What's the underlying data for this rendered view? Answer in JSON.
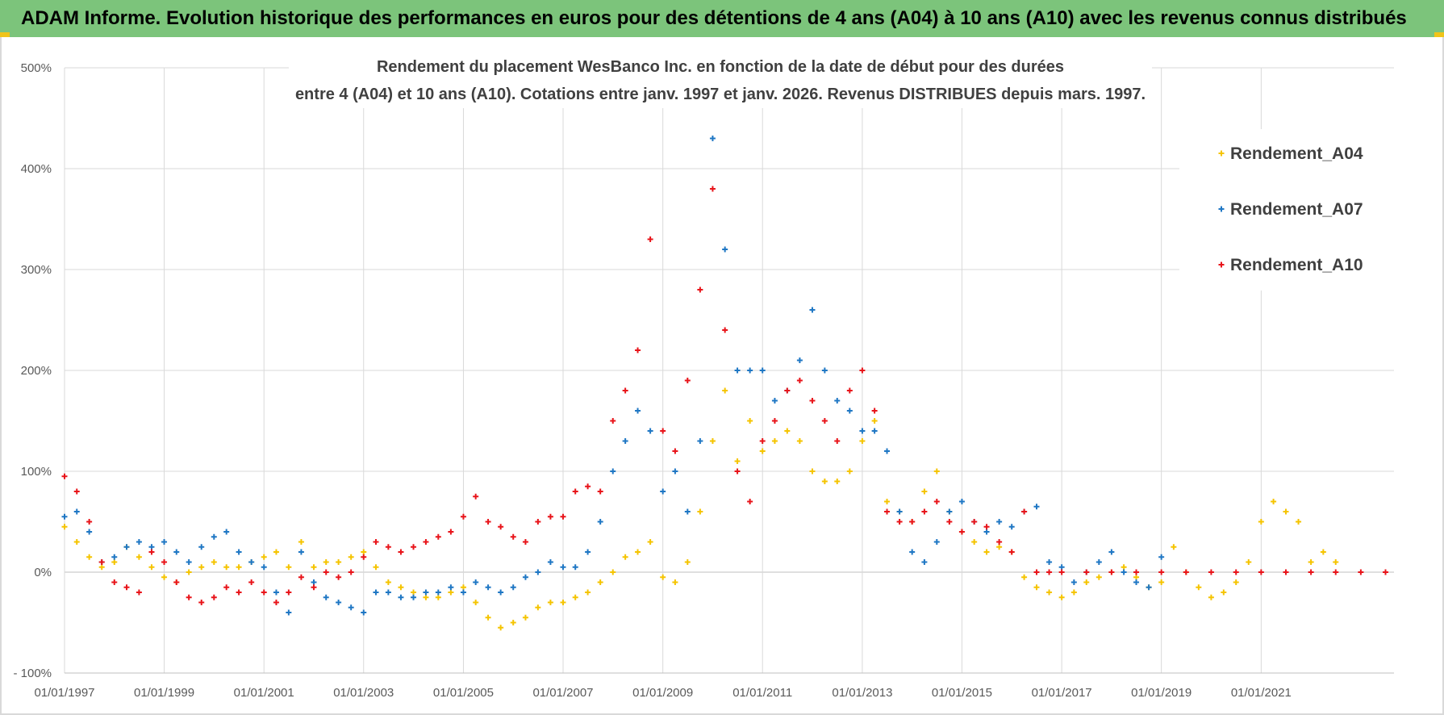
{
  "banner": {
    "title": "ADAM Informe. Evolution historique des performances en euros pour des détentions de 4 ans (A04) à 10 ans (A10) avec les revenus connus distribués"
  },
  "chart_data": {
    "type": "scatter",
    "title_line1": "Rendement du placement WesBanco Inc. en fonction de la date de début pour des durées",
    "title_line2": "entre 4 (A04) et 10 ans (A10).  Cotations entre janv. 1997 et janv. 2026. Revenus DISTRIBUES depuis mars. 1997.",
    "xlabel": "",
    "ylabel": "",
    "xlim": [
      "1997-01-01",
      "2023-09-01"
    ],
    "ylim": [
      -100,
      500
    ],
    "y_ticks": [
      -100,
      0,
      100,
      200,
      300,
      400,
      500
    ],
    "y_tick_labels": [
      "- 100%",
      "0%",
      "100%",
      "200%",
      "300%",
      "400%",
      "500%"
    ],
    "x_ticks": [
      "1997-01-01",
      "1999-01-01",
      "2001-01-01",
      "2003-01-01",
      "2005-01-01",
      "2007-01-01",
      "2009-01-01",
      "2011-01-01",
      "2013-01-01",
      "2015-01-01",
      "2017-01-01",
      "2019-01-01",
      "2021-01-01"
    ],
    "x_tick_labels": [
      "01/01/1997",
      "01/01/1999",
      "01/01/2001",
      "01/01/2003",
      "01/01/2005",
      "01/01/2007",
      "01/01/2009",
      "01/01/2011",
      "01/01/2013",
      "01/01/2015",
      "01/01/2017",
      "01/01/2019",
      "01/01/2021"
    ],
    "grid": true,
    "legend_position": "top-right",
    "marker": "+",
    "series": [
      {
        "name": "Rendement_A04",
        "color": "#f5c400",
        "x": [
          "1997-01-01",
          "1997-04-01",
          "1997-07-01",
          "1997-10-01",
          "1998-01-01",
          "1998-04-01",
          "1998-07-01",
          "1998-10-01",
          "1999-01-01",
          "1999-04-01",
          "1999-07-01",
          "1999-10-01",
          "2000-01-01",
          "2000-04-01",
          "2000-07-01",
          "2000-10-01",
          "2001-01-01",
          "2001-04-01",
          "2001-07-01",
          "2001-10-01",
          "2002-01-01",
          "2002-04-01",
          "2002-07-01",
          "2002-10-01",
          "2003-01-01",
          "2003-04-01",
          "2003-07-01",
          "2003-10-01",
          "2004-01-01",
          "2004-04-01",
          "2004-07-01",
          "2004-10-01",
          "2005-01-01",
          "2005-04-01",
          "2005-07-01",
          "2005-10-01",
          "2006-01-01",
          "2006-04-01",
          "2006-07-01",
          "2006-10-01",
          "2007-01-01",
          "2007-04-01",
          "2007-07-01",
          "2007-10-01",
          "2008-01-01",
          "2008-04-01",
          "2008-07-01",
          "2008-10-01",
          "2009-01-01",
          "2009-04-01",
          "2009-07-01",
          "2009-10-01",
          "2010-01-01",
          "2010-04-01",
          "2010-07-01",
          "2010-10-01",
          "2011-01-01",
          "2011-04-01",
          "2011-07-01",
          "2011-10-01",
          "2012-01-01",
          "2012-04-01",
          "2012-07-01",
          "2012-10-01",
          "2013-01-01",
          "2013-04-01",
          "2013-07-01",
          "2013-10-01",
          "2014-01-01",
          "2014-04-01",
          "2014-07-01",
          "2014-10-01",
          "2015-01-01",
          "2015-04-01",
          "2015-07-01",
          "2015-10-01",
          "2016-01-01",
          "2016-04-01",
          "2016-07-01",
          "2016-10-01",
          "2017-01-01",
          "2017-04-01",
          "2017-07-01",
          "2017-10-01",
          "2018-01-01",
          "2018-04-01",
          "2018-07-01",
          "2018-10-01",
          "2019-01-01",
          "2019-04-01",
          "2019-07-01",
          "2019-10-01",
          "2020-01-01",
          "2020-04-01",
          "2020-07-01",
          "2020-10-01",
          "2021-01-01",
          "2021-04-01",
          "2021-07-01",
          "2021-10-01",
          "2022-01-01",
          "2022-04-01",
          "2022-07-01"
        ],
        "values": [
          45,
          30,
          15,
          5,
          10,
          25,
          15,
          5,
          -5,
          -10,
          0,
          5,
          10,
          5,
          5,
          10,
          15,
          20,
          5,
          30,
          5,
          10,
          10,
          15,
          20,
          5,
          -10,
          -15,
          -20,
          -25,
          -25,
          -20,
          -15,
          -30,
          -45,
          -55,
          -50,
          -45,
          -35,
          -30,
          -30,
          -25,
          -20,
          -10,
          0,
          15,
          20,
          30,
          -5,
          -10,
          10,
          60,
          130,
          180,
          110,
          150,
          120,
          130,
          140,
          130,
          100,
          90,
          90,
          100,
          130,
          150,
          70,
          60,
          50,
          80,
          100,
          60,
          40,
          30,
          20,
          25,
          20,
          -5,
          -15,
          -20,
          -25,
          -20,
          -10,
          -5,
          0,
          5,
          -5,
          -15,
          -10,
          25,
          0,
          -15,
          -25,
          -20,
          -10,
          10,
          50,
          70,
          60,
          50,
          10,
          20,
          10
        ]
      },
      {
        "name": "Rendement_A07",
        "color": "#1f77c4",
        "x": [
          "1997-01-01",
          "1997-04-01",
          "1997-07-01",
          "1997-10-01",
          "1998-01-01",
          "1998-04-01",
          "1998-07-01",
          "1998-10-01",
          "1999-01-01",
          "1999-04-01",
          "1999-07-01",
          "1999-10-01",
          "2000-01-01",
          "2000-04-01",
          "2000-07-01",
          "2000-10-01",
          "2001-01-01",
          "2001-04-01",
          "2001-07-01",
          "2001-10-01",
          "2002-01-01",
          "2002-04-01",
          "2002-07-01",
          "2002-10-01",
          "2003-01-01",
          "2003-04-01",
          "2003-07-01",
          "2003-10-01",
          "2004-01-01",
          "2004-04-01",
          "2004-07-01",
          "2004-10-01",
          "2005-01-01",
          "2005-04-01",
          "2005-07-01",
          "2005-10-01",
          "2006-01-01",
          "2006-04-01",
          "2006-07-01",
          "2006-10-01",
          "2007-01-01",
          "2007-04-01",
          "2007-07-01",
          "2007-10-01",
          "2008-01-01",
          "2008-04-01",
          "2008-07-01",
          "2008-10-01",
          "2009-01-01",
          "2009-04-01",
          "2009-07-01",
          "2009-10-01",
          "2010-01-01",
          "2010-04-01",
          "2010-07-01",
          "2010-10-01",
          "2011-01-01",
          "2011-04-01",
          "2011-07-01",
          "2011-10-01",
          "2012-01-01",
          "2012-04-01",
          "2012-07-01",
          "2012-10-01",
          "2013-01-01",
          "2013-04-01",
          "2013-07-01",
          "2013-10-01",
          "2014-01-01",
          "2014-04-01",
          "2014-07-01",
          "2014-10-01",
          "2015-01-01",
          "2015-04-01",
          "2015-07-01",
          "2015-10-01",
          "2016-01-01",
          "2016-04-01",
          "2016-07-01",
          "2016-10-01",
          "2017-01-01",
          "2017-04-01",
          "2017-07-01",
          "2017-10-01",
          "2018-01-01",
          "2018-04-01",
          "2018-07-01",
          "2018-10-01",
          "2019-01-01"
        ],
        "values": [
          55,
          60,
          40,
          10,
          15,
          25,
          30,
          25,
          30,
          20,
          10,
          25,
          35,
          40,
          20,
          10,
          5,
          -20,
          -40,
          20,
          -10,
          -25,
          -30,
          -35,
          -40,
          -20,
          -20,
          -25,
          -25,
          -20,
          -20,
          -15,
          -20,
          -10,
          -15,
          -20,
          -15,
          -5,
          0,
          10,
          5,
          5,
          20,
          50,
          100,
          130,
          160,
          140,
          80,
          100,
          60,
          130,
          430,
          320,
          200,
          200,
          200,
          170,
          180,
          210,
          260,
          200,
          170,
          160,
          140,
          140,
          120,
          60,
          20,
          10,
          30,
          60,
          70,
          50,
          40,
          50,
          45,
          60,
          65,
          10,
          5,
          -10,
          0,
          10,
          20,
          0,
          -10,
          -15,
          15
        ]
      },
      {
        "name": "Rendement_A10",
        "color": "#e8141a",
        "x": [
          "1997-01-01",
          "1997-04-01",
          "1997-07-01",
          "1997-10-01",
          "1998-01-01",
          "1998-04-01",
          "1998-07-01",
          "1998-10-01",
          "1999-01-01",
          "1999-04-01",
          "1999-07-01",
          "1999-10-01",
          "2000-01-01",
          "2000-04-01",
          "2000-07-01",
          "2000-10-01",
          "2001-01-01",
          "2001-04-01",
          "2001-07-01",
          "2001-10-01",
          "2002-01-01",
          "2002-04-01",
          "2002-07-01",
          "2002-10-01",
          "2003-01-01",
          "2003-04-01",
          "2003-07-01",
          "2003-10-01",
          "2004-01-01",
          "2004-04-01",
          "2004-07-01",
          "2004-10-01",
          "2005-01-01",
          "2005-04-01",
          "2005-07-01",
          "2005-10-01",
          "2006-01-01",
          "2006-04-01",
          "2006-07-01",
          "2006-10-01",
          "2007-01-01",
          "2007-04-01",
          "2007-07-01",
          "2007-10-01",
          "2008-01-01",
          "2008-04-01",
          "2008-07-01",
          "2008-10-01",
          "2009-01-01",
          "2009-04-01",
          "2009-07-01",
          "2009-10-01",
          "2010-01-01",
          "2010-04-01",
          "2010-07-01",
          "2010-10-01",
          "2011-01-01",
          "2011-04-01",
          "2011-07-01",
          "2011-10-01",
          "2012-01-01",
          "2012-04-01",
          "2012-07-01",
          "2012-10-01",
          "2013-01-01",
          "2013-04-01",
          "2013-07-01",
          "2013-10-01",
          "2014-01-01",
          "2014-04-01",
          "2014-07-01",
          "2014-10-01",
          "2015-01-01",
          "2015-04-01",
          "2015-07-01",
          "2015-10-01",
          "2016-01-01",
          "2016-04-01",
          "2016-07-01",
          "2016-10-01",
          "2017-01-01",
          "2017-07-01",
          "2018-01-01",
          "2018-07-01",
          "2019-01-01",
          "2019-07-01",
          "2020-01-01",
          "2020-07-01",
          "2021-01-01",
          "2021-07-01",
          "2022-01-01",
          "2022-07-01",
          "2023-01-01",
          "2023-07-01"
        ],
        "values": [
          95,
          80,
          50,
          10,
          -10,
          -15,
          -20,
          20,
          10,
          -10,
          -25,
          -30,
          -25,
          -15,
          -20,
          -10,
          -20,
          -30,
          -20,
          -5,
          -15,
          0,
          -5,
          0,
          15,
          30,
          25,
          20,
          25,
          30,
          35,
          40,
          55,
          75,
          50,
          45,
          35,
          30,
          50,
          55,
          55,
          80,
          85,
          80,
          150,
          180,
          220,
          330,
          140,
          120,
          190,
          280,
          380,
          240,
          100,
          70,
          130,
          150,
          180,
          190,
          170,
          150,
          130,
          180,
          200,
          160,
          60,
          50,
          50,
          60,
          70,
          50,
          40,
          50,
          45,
          30,
          20,
          60,
          0,
          0,
          0,
          0,
          0,
          0,
          0,
          0,
          0,
          0,
          0,
          0,
          0,
          0,
          0,
          0
        ]
      }
    ]
  }
}
